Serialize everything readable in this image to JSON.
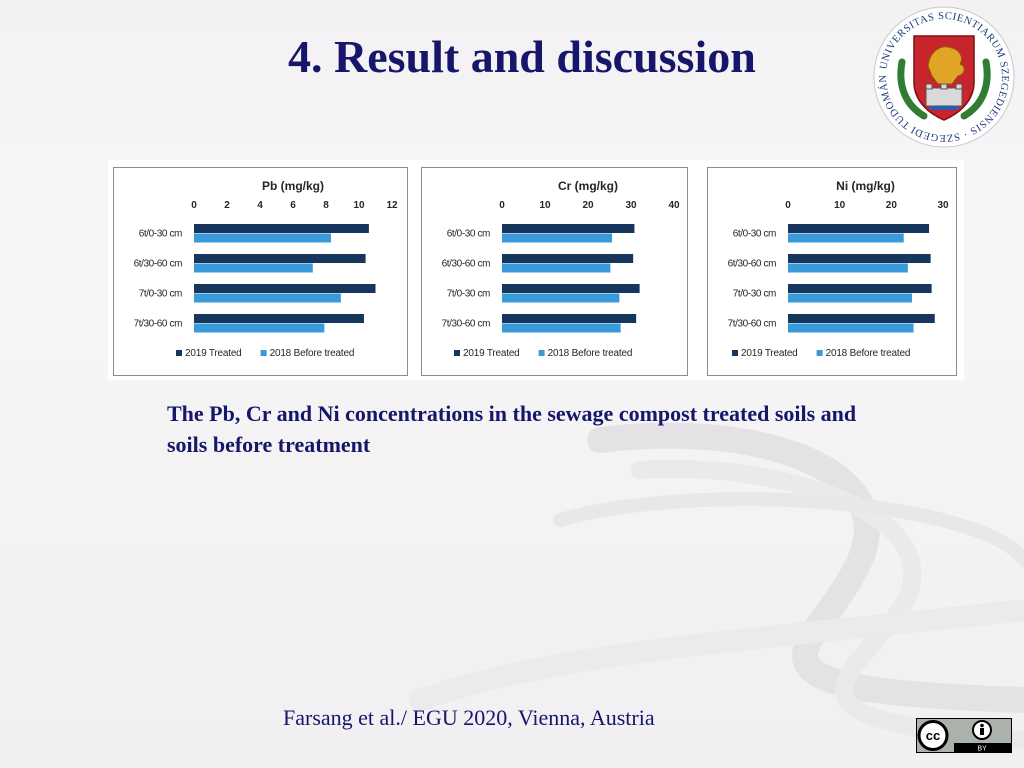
{
  "slide": {
    "title": "4. Result and discussion",
    "caption": "The Pb, Cr and Ni concentrations in the sewage compost treated soils and soils before treatment",
    "footer": "Farsang et al./ EGU 2020, Vienna, Austria"
  },
  "logo": {
    "ring_text": "UNIVERSITAS SCIENTIARUM SZEGEDIENSIS · SZEGEDI TUDOMÁNYEGYETEM",
    "colors": {
      "ring": "#ffffff",
      "text": "#1a3a7a",
      "shield": "#c8242b",
      "griffin": "#e0a526",
      "leaves": "#2e7d32"
    }
  },
  "license": {
    "label": "BY",
    "icons": [
      "cc-icon",
      "attribution-icon"
    ]
  },
  "colors": {
    "title": "#16166b",
    "series_2019": "#17365d",
    "series_2018": "#3a9ad9",
    "axis_text": "#262626"
  },
  "chart_data": [
    {
      "type": "bar",
      "orientation": "horizontal",
      "title": "Pb (mg/kg)",
      "categories": [
        "6t/0-30 cm",
        "6t/30-60 cm",
        "7t/0-30 cm",
        "7t/30-60 cm"
      ],
      "series": [
        {
          "name": "2019 Treated",
          "values": [
            10.6,
            10.4,
            11.0,
            10.3
          ]
        },
        {
          "name": "2018 Before treated",
          "values": [
            8.3,
            7.2,
            8.9,
            7.9
          ]
        }
      ],
      "xticks": [
        0,
        2,
        4,
        6,
        8,
        10,
        12
      ],
      "xlim": [
        0,
        12
      ],
      "legend": "bottom"
    },
    {
      "type": "bar",
      "orientation": "horizontal",
      "title": "Cr (mg/kg)",
      "categories": [
        "6t/0-30 cm",
        "6t/30-60 cm",
        "7t/0-30 cm",
        "7t/30-60 cm"
      ],
      "series": [
        {
          "name": "2019 Treated",
          "values": [
            30.8,
            30.5,
            32.0,
            31.2
          ]
        },
        {
          "name": "2018 Before treated",
          "values": [
            25.6,
            25.2,
            27.3,
            27.6
          ]
        }
      ],
      "xticks": [
        0,
        10,
        20,
        30,
        40
      ],
      "xlim": [
        0,
        40
      ],
      "legend": "bottom"
    },
    {
      "type": "bar",
      "orientation": "horizontal",
      "title": "Ni (mg/kg)",
      "categories": [
        "6t/0-30 cm",
        "6t/30-60 cm",
        "7t/0-30 cm",
        "7t/30-60 cm"
      ],
      "series": [
        {
          "name": "2019 Treated",
          "values": [
            27.3,
            27.6,
            27.8,
            28.4
          ]
        },
        {
          "name": "2018 Before treated",
          "values": [
            22.4,
            23.2,
            24.0,
            24.3
          ]
        }
      ],
      "xticks": [
        0,
        10,
        20,
        30
      ],
      "xlim": [
        0,
        30
      ],
      "legend": "bottom"
    }
  ]
}
